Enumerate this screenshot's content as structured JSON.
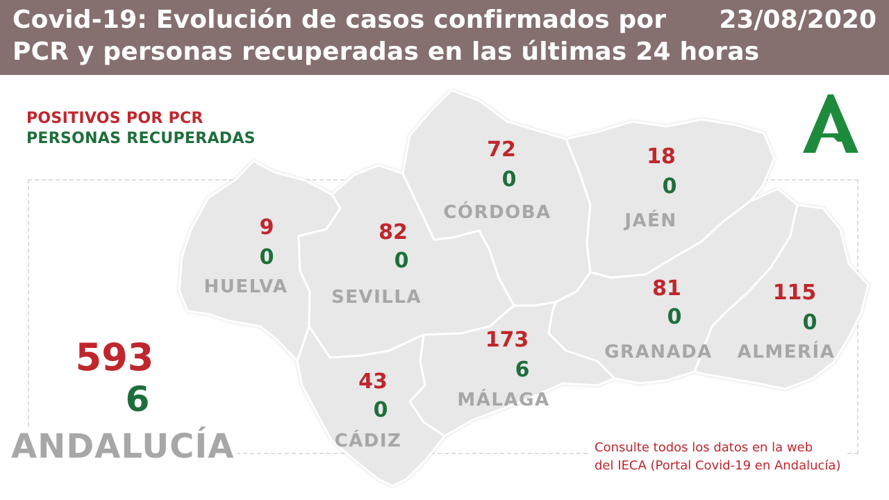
{
  "header": {
    "title_line1": "Covid-19: Evolución de casos confirmados por",
    "title_line2": "PCR y personas recuperadas en las últimas 24 horas",
    "date": "23/08/2020"
  },
  "legend": {
    "positives": "POSITIVOS POR PCR",
    "recovered": "PERSONAS RECUPERADAS"
  },
  "colors": {
    "header_bg": "#85706f",
    "positives": "#c0262d",
    "recovered": "#1e6e3b",
    "map_fill": "#e8e8e8",
    "province_label": "#a7a7a7",
    "logo": "#1e8a3c"
  },
  "logo": {
    "icon": "junta-de-andalucia-logo"
  },
  "provinces": [
    {
      "name": "HUELVA",
      "positives": "9",
      "recovered": "0"
    },
    {
      "name": "SEVILLA",
      "positives": "82",
      "recovered": "0"
    },
    {
      "name": "CÓRDOBA",
      "positives": "72",
      "recovered": "0"
    },
    {
      "name": "JAÉN",
      "positives": "18",
      "recovered": "0"
    },
    {
      "name": "GRANADA",
      "positives": "81",
      "recovered": "0"
    },
    {
      "name": "ALMERÍA",
      "positives": "115",
      "recovered": "0"
    },
    {
      "name": "MÁLAGA",
      "positives": "173",
      "recovered": "6"
    },
    {
      "name": "CÁDIZ",
      "positives": "43",
      "recovered": "0"
    }
  ],
  "total": {
    "name": "ANDALUCÍA",
    "positives": "593",
    "recovered": "6"
  },
  "note": {
    "line1": "Consulte todos los datos en la web",
    "line2": "del IECA (Portal Covid-19 en Andalucía)"
  }
}
